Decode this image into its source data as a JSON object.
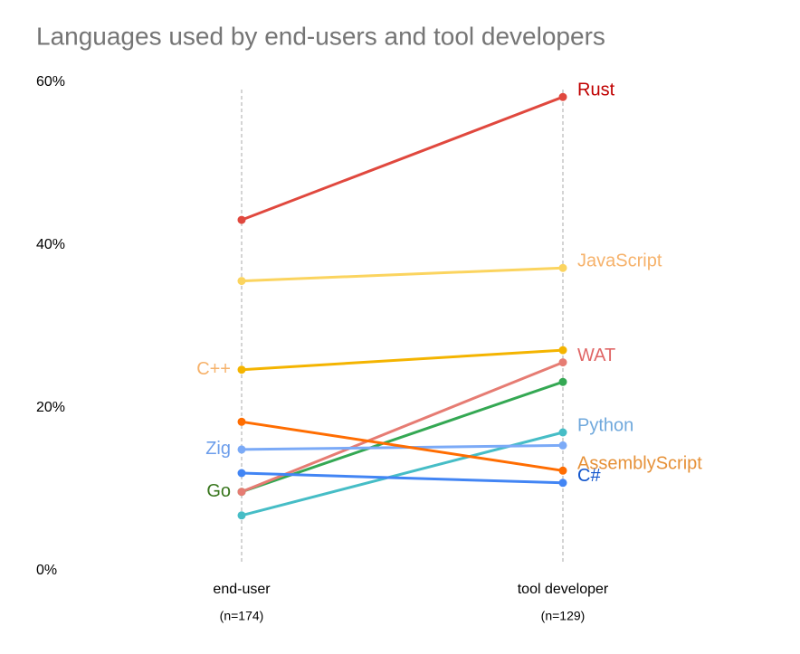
{
  "chart_data": {
    "type": "slope",
    "title": "Languages used by end-users and tool developers",
    "categories": [
      "end-user",
      "tool developer"
    ],
    "category_sublabels": [
      "(n=174)",
      "(n=129)"
    ],
    "ylim": [
      0,
      60
    ],
    "yticks": [
      {
        "value": 0,
        "label": "0%"
      },
      {
        "value": 20,
        "label": "20%"
      },
      {
        "value": 40,
        "label": "40%"
      },
      {
        "value": 60,
        "label": "60%"
      }
    ],
    "series": [
      {
        "name": "Rust",
        "color": "#e0483e",
        "label_color": "#c00000",
        "label_side": "right",
        "values": [
          43.1,
          58.2
        ]
      },
      {
        "name": "JavaScript",
        "color": "#fbd45f",
        "label_color": "#f6b26b",
        "label_side": "right",
        "values": [
          35.6,
          37.2
        ]
      },
      {
        "name": "C++",
        "color": "#f4b400",
        "label_color": "#f6b26b",
        "label_side": "left",
        "values": [
          24.7,
          27.1
        ]
      },
      {
        "name": "Go",
        "color": "#34a853",
        "label_color": "#38761d",
        "label_side": "left",
        "values": [
          9.7,
          23.2
        ]
      },
      {
        "name": "WAT",
        "color": "#e67c73",
        "label_color": "#e06666",
        "label_side": "right",
        "values": [
          9.7,
          25.6
        ]
      },
      {
        "name": "Python",
        "color": "#46bdc6",
        "label_color": "#6fa8dc",
        "label_side": "right",
        "values": [
          6.8,
          17.0
        ]
      },
      {
        "name": "Zig",
        "color": "#7baaf7",
        "label_color": "#6d9eeb",
        "label_side": "left",
        "values": [
          14.9,
          15.4
        ]
      },
      {
        "name": "AssemblyScript",
        "color": "#ff6d01",
        "label_color": "#e69138",
        "label_side": "right",
        "values": [
          18.3,
          12.3
        ]
      },
      {
        "name": "C#",
        "color": "#4285f4",
        "label_color": "#1155cc",
        "label_side": "right",
        "values": [
          12.0,
          10.8
        ]
      }
    ]
  }
}
